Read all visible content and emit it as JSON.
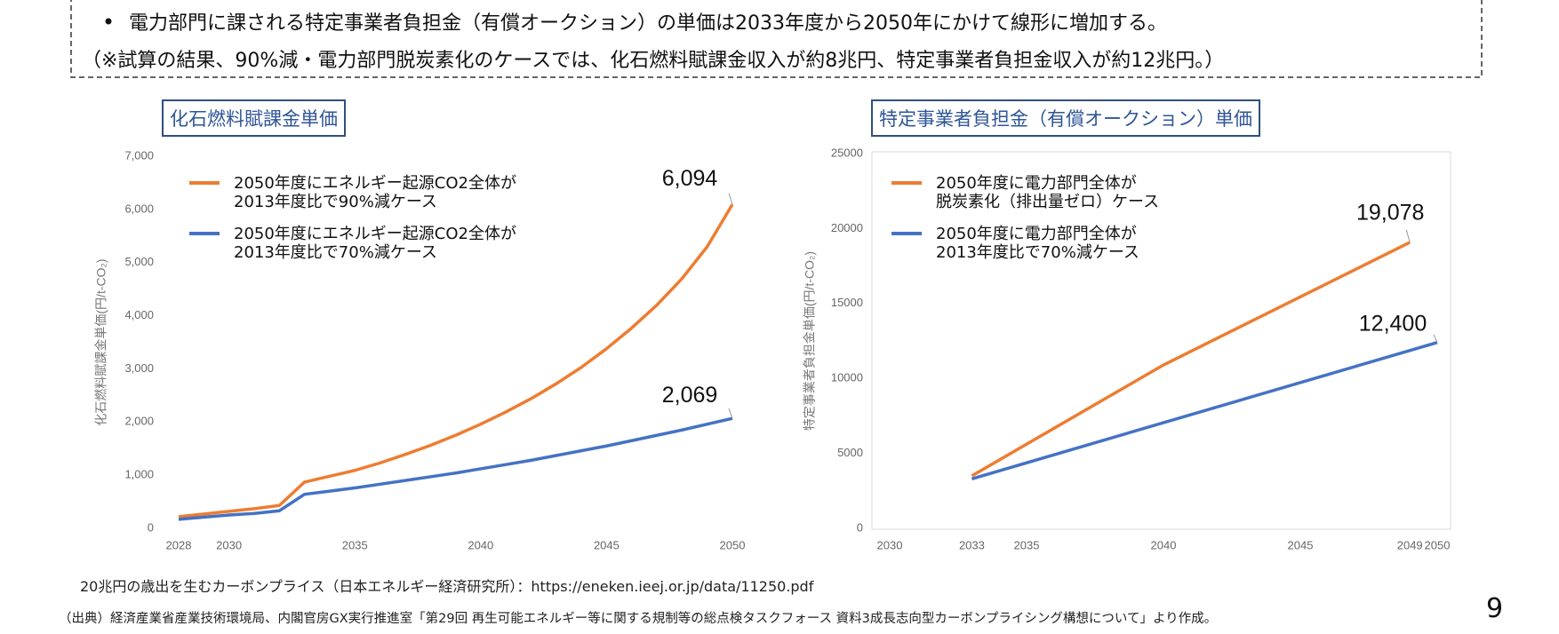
{
  "slide": {
    "bullet": "電力部門に課される特定事業者負担金（有償オークション）の単価は2033年度から2050年にかけて線形に増加する。",
    "note": "（※試算の結果、90%減・電力部門脱炭素化のケースでは、化石燃料賦課金収入が約8兆円、特定事業者負担金収入が約12兆円。）",
    "reference": "20兆円の歳出を生むカーボンプライス（日本エネルギー経済研究所）：https://eneken.ieej.or.jp/data/11250.pdf",
    "source": "（出典）経済産業省産業技術環境局、内閣官房GX実行推進室「第29回 再生可能エネルギー等に関する規制等の総点検タスクフォース 資料3成長志向型カーボンプライシング構想について」より作成。",
    "page_number": "9"
  },
  "chart_data": [
    {
      "type": "line",
      "title": "化石燃料賦課金単価",
      "y_label": "化石燃料賦課金単価(円/t-CO₂)",
      "x": [
        2028,
        2029,
        2030,
        2031,
        2032,
        2033,
        2034,
        2035,
        2036,
        2037,
        2038,
        2039,
        2040,
        2041,
        2042,
        2043,
        2044,
        2045,
        2046,
        2047,
        2048,
        2049,
        2050
      ],
      "xlim": [
        2028,
        2050
      ],
      "xticks": [
        2028,
        2030,
        2035,
        2040,
        2045,
        2050
      ],
      "ylim": [
        0,
        7000
      ],
      "yticks": [
        0,
        {
          "value": 1000,
          "label": "1,000"
        },
        {
          "value": 2000,
          "label": "2,000"
        },
        {
          "value": 3000,
          "label": "3,000"
        },
        {
          "value": 4000,
          "label": "4,000"
        },
        {
          "value": 5000,
          "label": "5,000"
        },
        {
          "value": 6000,
          "label": "6,000"
        },
        {
          "value": 7000,
          "label": "7,000"
        }
      ],
      "grid": false,
      "series": [
        {
          "name": "2050年度にエネルギー起源CO2全体が\n2013年度比で90%減ケース",
          "color": "#ed7d31",
          "values": [
            220,
            270,
            320,
            370,
            430,
            870,
            980,
            1090,
            1230,
            1390,
            1560,
            1750,
            1960,
            2190,
            2440,
            2720,
            3030,
            3380,
            3770,
            4200,
            4700,
            5300,
            6094
          ],
          "value_labels": [
            null,
            null,
            null,
            null,
            null,
            null,
            null,
            null,
            null,
            null,
            null,
            null,
            null,
            null,
            null,
            null,
            null,
            null,
            null,
            null,
            null,
            null,
            "6,094"
          ]
        },
        {
          "name": "2050年度にエネルギー起源CO2全体が\n2013年度比で70%減ケース",
          "color": "#4472c4",
          "values": [
            170,
            210,
            250,
            280,
            330,
            640,
            700,
            760,
            830,
            900,
            970,
            1040,
            1120,
            1200,
            1280,
            1370,
            1460,
            1550,
            1650,
            1750,
            1850,
            1960,
            2069
          ],
          "value_labels": [
            null,
            null,
            null,
            null,
            null,
            null,
            null,
            null,
            null,
            null,
            null,
            null,
            null,
            null,
            null,
            null,
            null,
            null,
            null,
            null,
            null,
            null,
            "2,069"
          ]
        }
      ]
    },
    {
      "type": "line",
      "title": "特定事業者負担金（有償オークション）単価",
      "y_label": "特定事業者負担金単価(円/t-CO₂)",
      "xlim": [
        2030,
        2050
      ],
      "xticks": [
        2030,
        2033,
        2035,
        2040,
        2045,
        2049,
        2050
      ],
      "ylim": [
        0,
        25000
      ],
      "yticks": [
        0,
        5000,
        10000,
        15000,
        20000,
        25000
      ],
      "grid": false,
      "series": [
        {
          "name": "2050年度に電力部門全体が\n脱炭素化（排出量ゼロ）ケース",
          "color": "#ed7d31",
          "x": [
            2033,
            2040,
            2049
          ],
          "values": [
            3500,
            10900,
            19078
          ],
          "value_labels": [
            null,
            null,
            "19,078"
          ]
        },
        {
          "name": "2050年度に電力部門全体が\n2013年度比で70%減ケース",
          "color": "#4472c4",
          "x": [
            2033,
            2050
          ],
          "values": [
            3300,
            12400
          ],
          "value_labels": [
            null,
            "12,400"
          ]
        }
      ]
    }
  ]
}
